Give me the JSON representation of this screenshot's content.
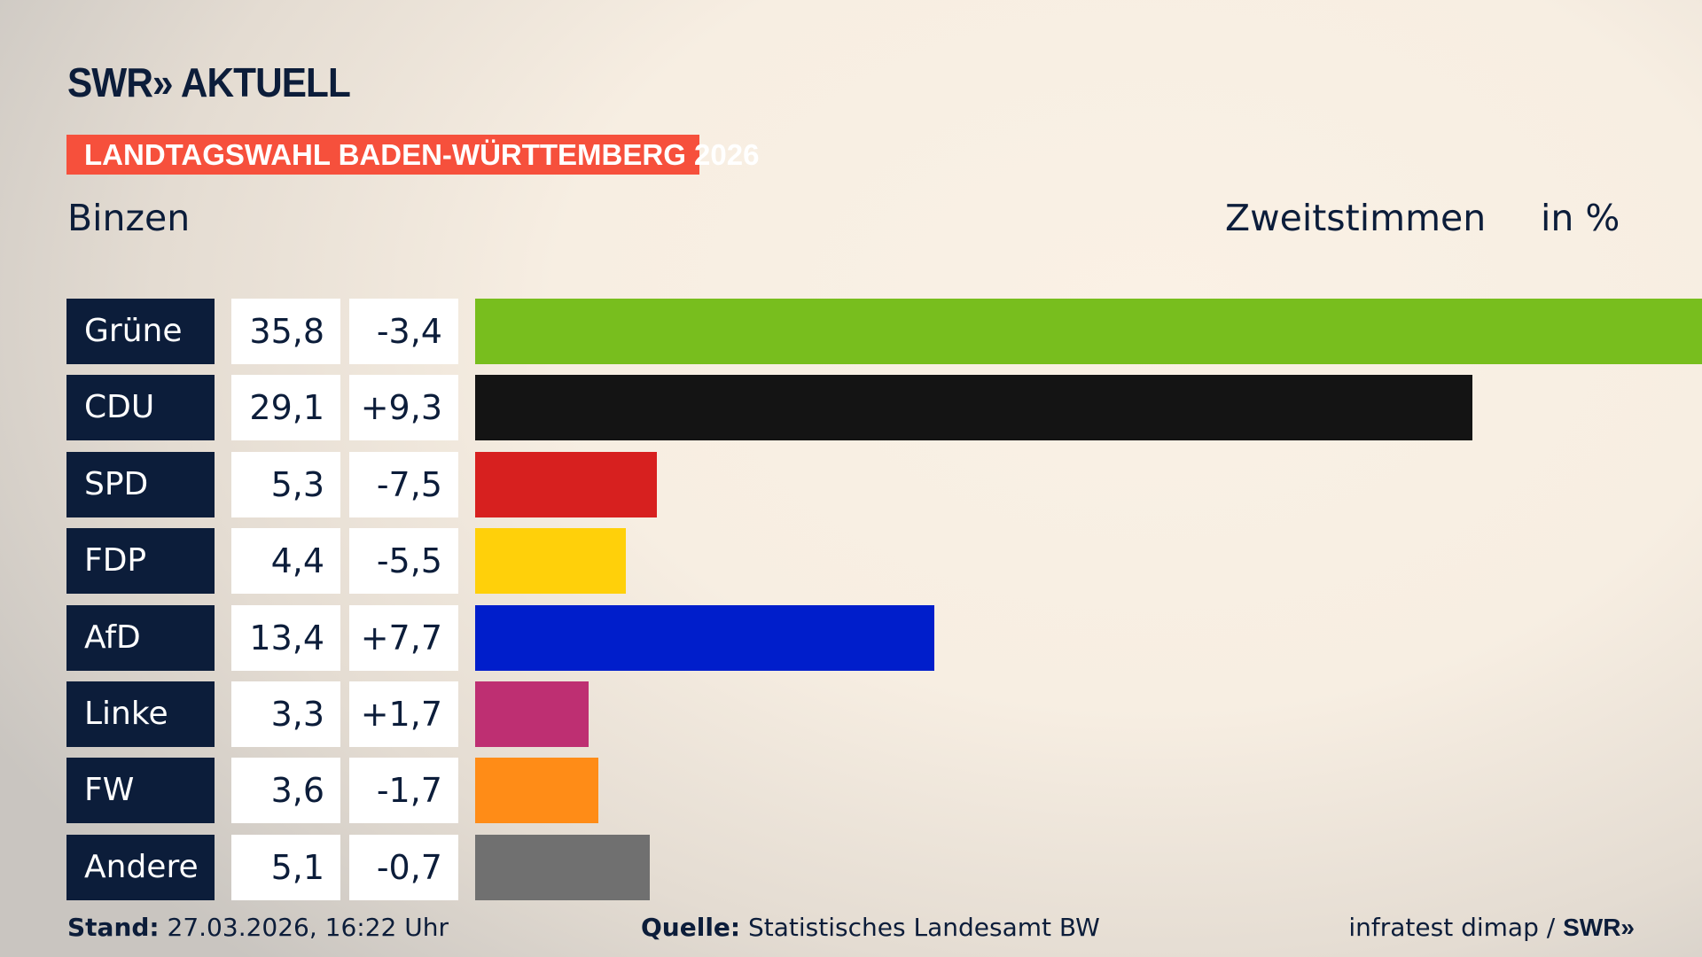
{
  "header": {
    "logo": "SWR» AKTUELL",
    "banner": "LANDTAGSWAHL BADEN-WÜRTTEMBERG 2026",
    "place": "Binzen",
    "measure": "Zweitstimmen",
    "unit": "in %"
  },
  "chart_data": {
    "type": "bar",
    "orientation": "horizontal",
    "xlim": [
      0,
      35.8
    ],
    "categories": [
      "Grüne",
      "CDU",
      "SPD",
      "FDP",
      "AfD",
      "Linke",
      "FW",
      "Andere"
    ],
    "values": [
      35.8,
      29.1,
      5.3,
      4.4,
      13.4,
      3.3,
      3.6,
      5.1
    ],
    "value_labels": [
      "35,8",
      "29,1",
      "5,3",
      "4,4",
      "13,4",
      "3,3",
      "3,6",
      "5,1"
    ],
    "diff_labels": [
      "-3,4",
      "+9,3",
      "-7,5",
      "-5,5",
      "+7,7",
      "+1,7",
      "-1,7",
      "-0,7"
    ],
    "colors": [
      "#78be1e",
      "#141414",
      "#d7201f",
      "#ffd00a",
      "#001ecb",
      "#be2f72",
      "#ff8c17",
      "#707070"
    ]
  },
  "footer": {
    "stand_label": "Stand:",
    "stand_value": "27.03.2026, 16:22 Uhr",
    "source_label": "Quelle:",
    "source_value": "Statistisches Landesamt BW",
    "credit": "infratest dimap / ",
    "credit_logo": "SWR»"
  }
}
